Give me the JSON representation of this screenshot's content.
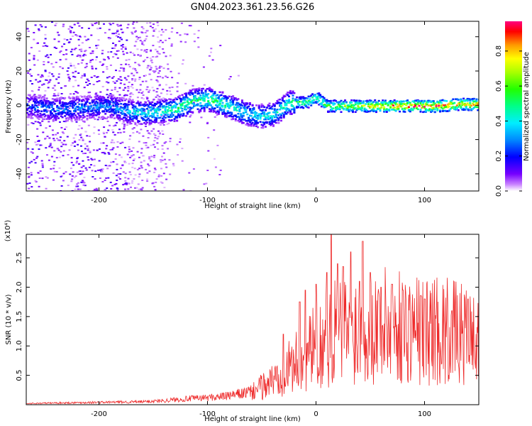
{
  "title": "GN04.2023.361.23.56.G26",
  "chart_data": [
    {
      "type": "heatmap",
      "xlabel": "Height of straight line (km)",
      "ylabel": "Frequency (Hz)",
      "xlim": [
        -267,
        150
      ],
      "ylim": [
        -50,
        49
      ],
      "xticks": [
        -200,
        -100,
        0,
        100
      ],
      "yticks": [
        40,
        20,
        0,
        -20,
        -40
      ],
      "colorbar": {
        "label": "Normalized spectral amplitude",
        "range": [
          0,
          0.97
        ],
        "ticks": [
          0.0,
          0.2,
          0.4,
          0.6,
          0.8
        ],
        "colormap": [
          "#ff00ff",
          "#0000ff",
          "#00ffff",
          "#00ff00",
          "#ffff00",
          "#ff0000",
          "#ff0080"
        ]
      },
      "ridge": [
        {
          "x": -265,
          "f": 0,
          "amp": 0.25
        },
        {
          "x": -240,
          "f": -2,
          "amp": 0.3
        },
        {
          "x": -215,
          "f": -1,
          "amp": 0.3
        },
        {
          "x": -190,
          "f": 0,
          "amp": 0.3
        },
        {
          "x": -175,
          "f": -3,
          "amp": 0.38
        },
        {
          "x": -160,
          "f": -4,
          "amp": 0.42
        },
        {
          "x": -145,
          "f": -3,
          "amp": 0.45
        },
        {
          "x": -130,
          "f": -2,
          "amp": 0.52
        },
        {
          "x": -115,
          "f": 3,
          "amp": 0.5
        },
        {
          "x": -100,
          "f": 4,
          "amp": 0.55
        },
        {
          "x": -85,
          "f": 1,
          "amp": 0.48
        },
        {
          "x": -70,
          "f": -3,
          "amp": 0.45
        },
        {
          "x": -55,
          "f": -6,
          "amp": 0.4
        },
        {
          "x": -40,
          "f": -5,
          "amp": 0.42
        },
        {
          "x": -25,
          "f": 2,
          "amp": 0.5
        },
        {
          "x": -10,
          "f": 2,
          "amp": 0.58
        },
        {
          "x": 0,
          "f": 5,
          "amp": 0.55
        },
        {
          "x": 10,
          "f": 0,
          "amp": 0.6
        },
        {
          "x": 30,
          "f": 0,
          "amp": 0.68
        },
        {
          "x": 50,
          "f": 0,
          "amp": 0.75
        },
        {
          "x": 70,
          "f": 0,
          "amp": 0.85
        },
        {
          "x": 90,
          "f": 0,
          "amp": 0.9
        },
        {
          "x": 110,
          "f": 0,
          "amp": 0.88
        },
        {
          "x": 130,
          "f": 1,
          "amp": 0.85
        },
        {
          "x": 150,
          "f": 1,
          "amp": 0.8
        }
      ]
    },
    {
      "type": "line",
      "xlabel": "Height of straight line (km)",
      "ylabel": "SNR (10 * v/v)",
      "yscale_label": "(x10⁴)",
      "xlim": [
        -267,
        150
      ],
      "ylim": [
        0,
        2.9
      ],
      "xticks": [
        -200,
        -100,
        0,
        100
      ],
      "yticks": [
        0.5,
        1.0,
        1.5,
        2.0,
        2.5
      ],
      "series": [
        {
          "color": "#ee2a2a",
          "x": [
            -267,
            -240,
            -200,
            -160,
            -140,
            -120,
            -100,
            -80,
            -60,
            -50,
            -40,
            -30,
            -20,
            -10,
            0,
            10,
            15,
            20,
            30,
            40,
            50,
            60,
            70,
            80,
            90,
            100,
            110,
            120,
            130,
            140,
            150
          ],
          "y": [
            0.02,
            0.03,
            0.04,
            0.05,
            0.07,
            0.1,
            0.12,
            0.15,
            0.22,
            0.3,
            0.42,
            0.55,
            0.7,
            0.8,
            1.0,
            1.1,
            1.2,
            1.25,
            1.3,
            1.3,
            1.35,
            1.35,
            1.35,
            1.3,
            1.3,
            1.25,
            1.3,
            1.25,
            1.2,
            1.15,
            1.1
          ],
          "peaks": [
            [
              -30,
              1.2
            ],
            [
              -15,
              1.75
            ],
            [
              -10,
              1.95
            ],
            [
              0,
              2.05
            ],
            [
              10,
              2.25
            ],
            [
              14,
              2.9
            ],
            [
              20,
              2.4
            ],
            [
              25,
              2.35
            ],
            [
              32,
              2.6
            ],
            [
              40,
              2.1
            ],
            [
              43,
              2.78
            ],
            [
              50,
              2.25
            ],
            [
              60,
              2.0
            ],
            [
              70,
              2.05
            ],
            [
              80,
              1.95
            ],
            [
              100,
              1.8
            ],
            [
              125,
              1.6
            ],
            [
              140,
              1.8
            ]
          ]
        }
      ]
    }
  ]
}
